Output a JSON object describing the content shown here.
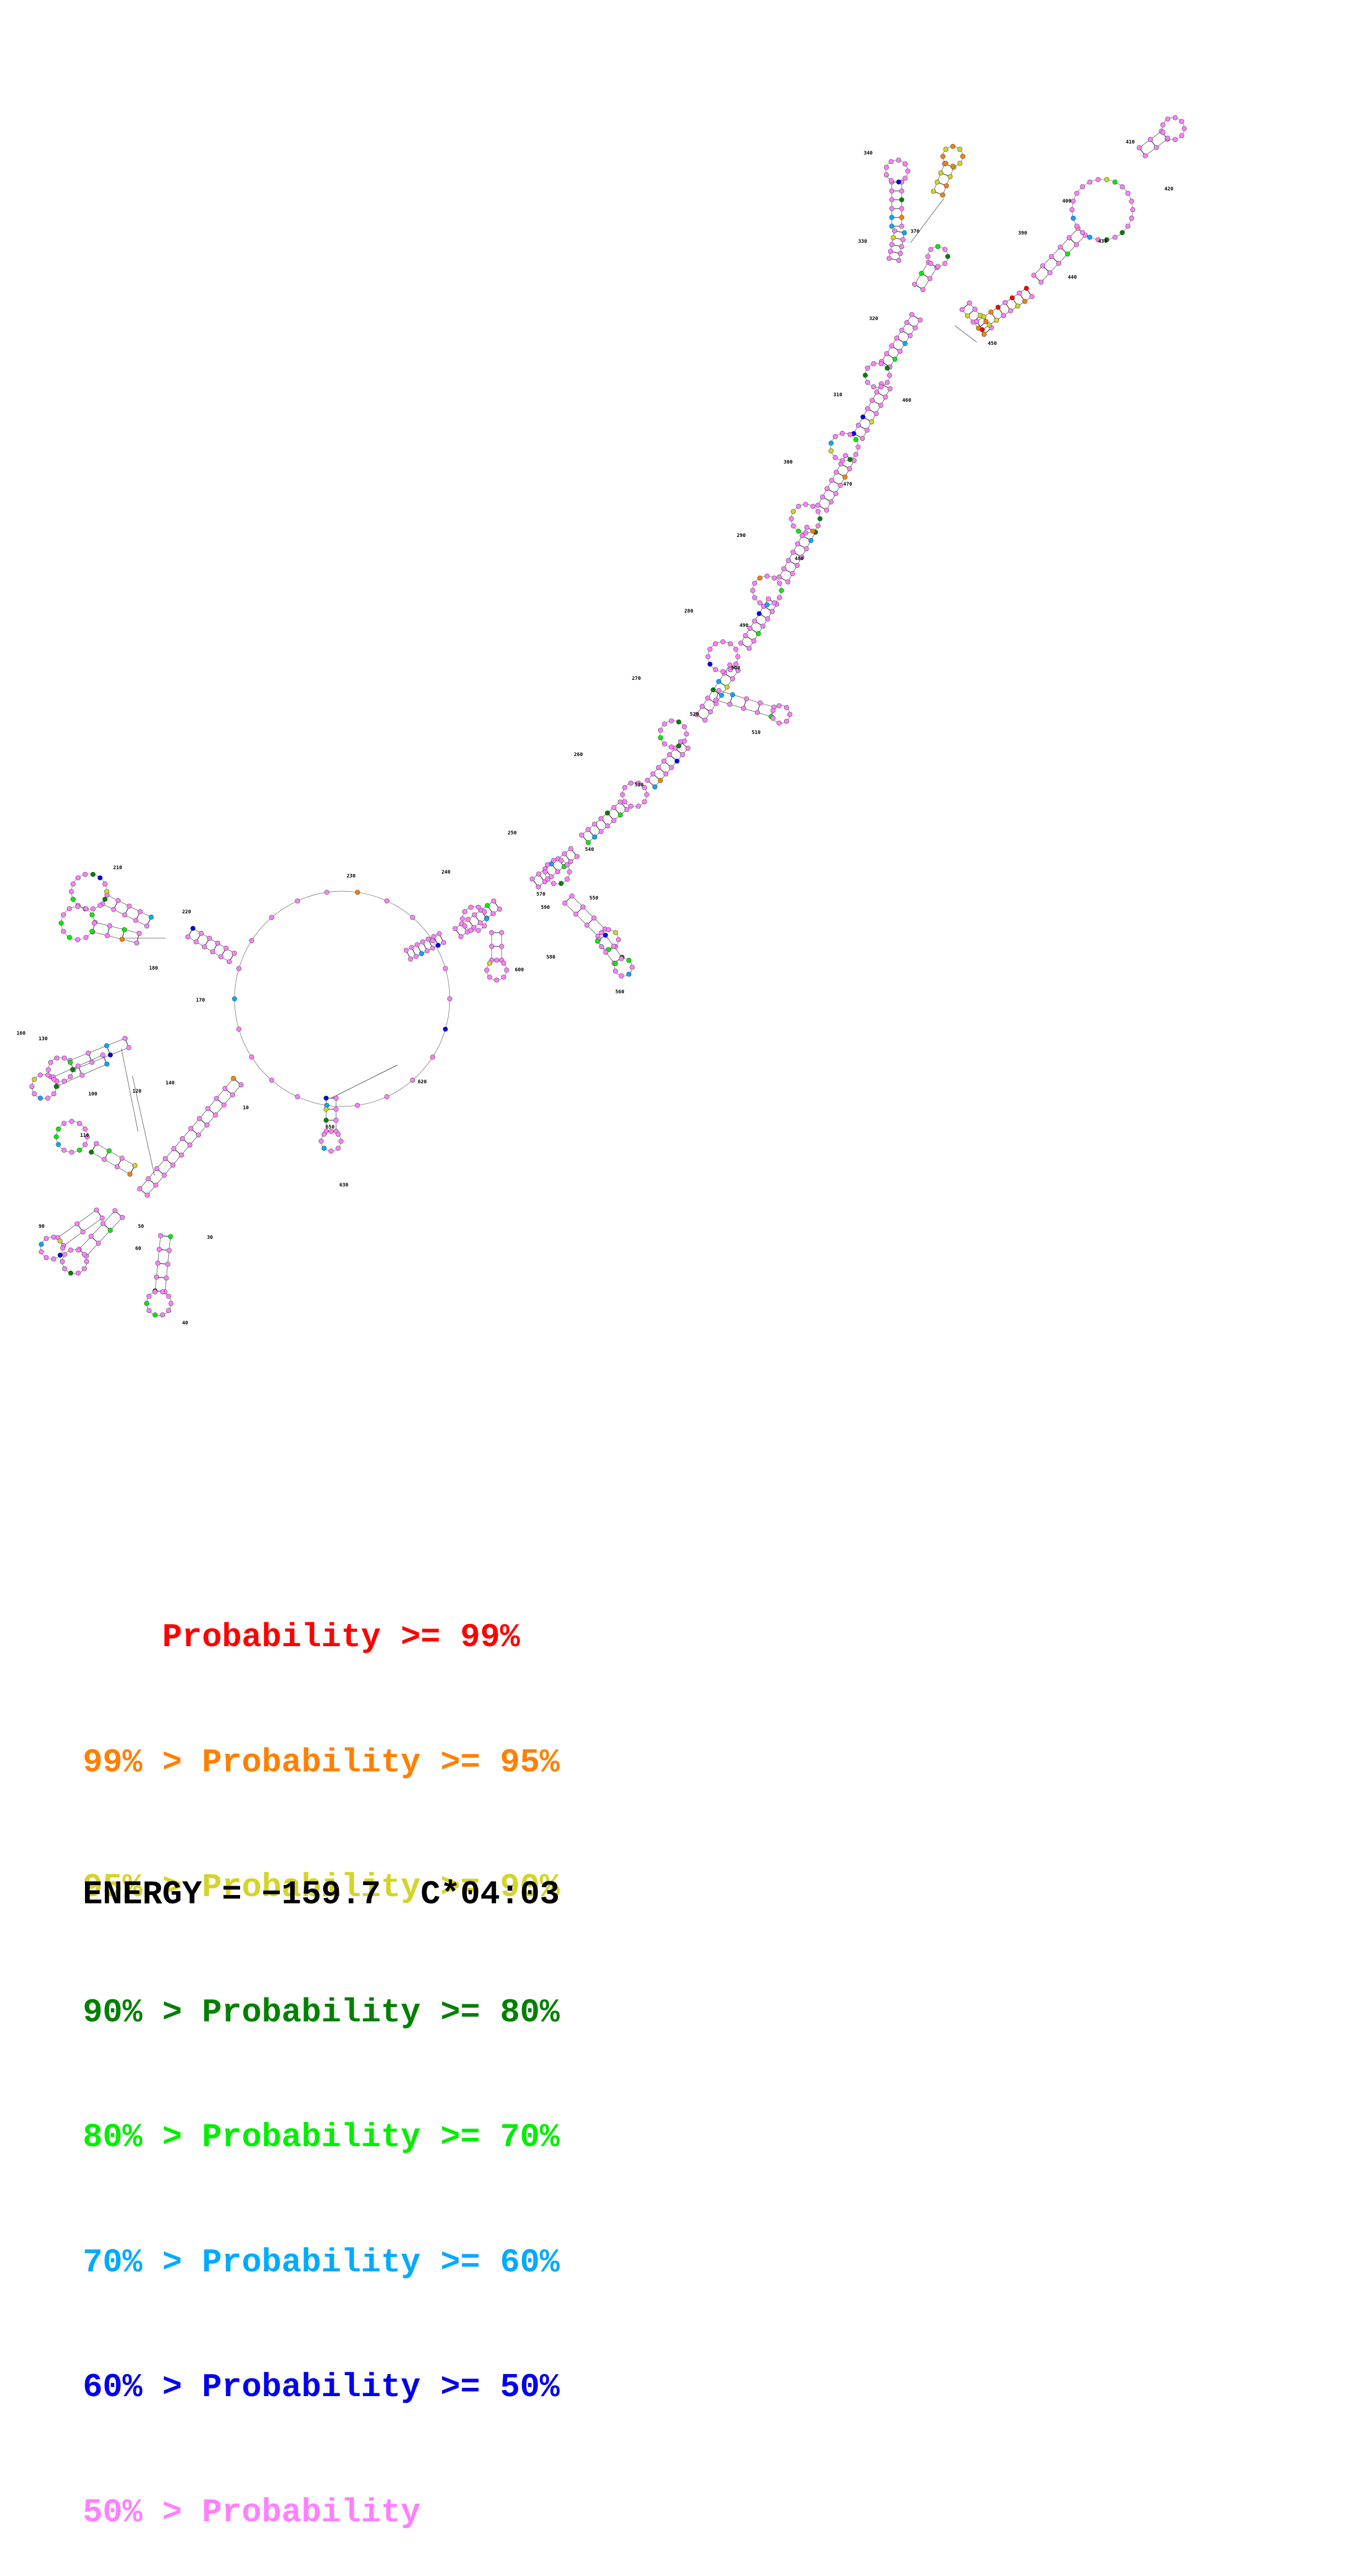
{
  "positions": [
    "10",
    "30",
    "40",
    "50",
    "60",
    "90",
    "100",
    "110",
    "120",
    "130",
    "140",
    "160",
    "170",
    "180",
    "210",
    "220",
    "230",
    "240",
    "250",
    "260",
    "270",
    "280",
    "290",
    "300",
    "310",
    "320",
    "330",
    "340",
    "370",
    "390",
    "400",
    "410",
    "420",
    "430",
    "440",
    "450",
    "460",
    "470",
    "480",
    "490",
    "500",
    "510",
    "520",
    "530",
    "540",
    "550",
    "560",
    "570",
    "580",
    "590",
    "600",
    "620",
    "630",
    "650"
  ],
  "colors": {
    "p99": "#ff0000",
    "p95": "#ff8000",
    "p90": "#d4d42a",
    "p80": "#008000",
    "p70": "#00ee00",
    "p60": "#00aaff",
    "p50": "#0000ee",
    "below": "#ff80ff"
  },
  "legend": [
    {
      "prefix": "    ",
      "text": "Probability >= 99%",
      "color": "#ff0000"
    },
    {
      "prefix": "99% > ",
      "text": "Probability >= 95%",
      "color": "#ff8000"
    },
    {
      "prefix": "95% > ",
      "text": "Probability >= 90%",
      "color": "#d4d42a"
    },
    {
      "prefix": "90% > ",
      "text": "Probability >= 80%",
      "color": "#008000"
    },
    {
      "prefix": "80% > ",
      "text": "Probability >= 70%",
      "color": "#00ee00"
    },
    {
      "prefix": "70% > ",
      "text": "Probability >= 60%",
      "color": "#00aaff"
    },
    {
      "prefix": "60% > ",
      "text": "Probability >= 50%",
      "color": "#0000ee"
    },
    {
      "prefix": "50% > ",
      "text": "Probability",
      "color": "#ff80ff"
    }
  ],
  "energy_label": "ENERGY = −159.7  C*04:03"
}
